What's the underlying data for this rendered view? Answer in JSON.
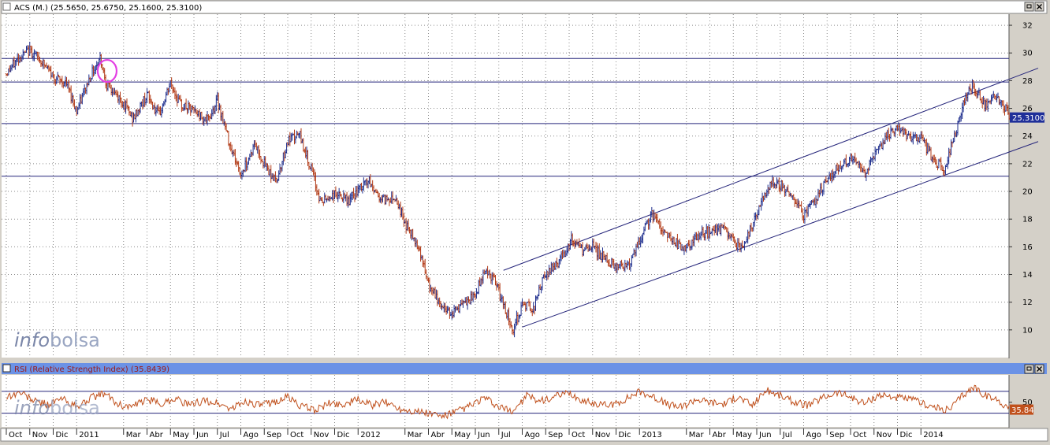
{
  "panels": {
    "price": {
      "header": "ACS (M.) (25.5650, 25.6750, 25.1600, 25.3100)",
      "last_value_label": "25.3100",
      "watermark": {
        "info": "info",
        "bolsa": "bolsa"
      }
    },
    "rsi": {
      "header": "RSI (Relative Strength Index) (35.8439)",
      "last_value_label": "35.84",
      "watermark": {
        "info": "info",
        "bolsa": "bolsa"
      }
    }
  },
  "window_buttons": [
    "restore-icon",
    "maximize-icon",
    "close-icon"
  ],
  "colors": {
    "background": "#ffffff",
    "header_bar": "#6b92e6",
    "bar_up": "#1c2c8c",
    "bar_down": "#b23a16",
    "trendline": "#24247a",
    "circle": "#e33fe3",
    "rsi_line": "#c0501c",
    "value_tag": "#1f2f99",
    "rsi_tag": "#c0501c",
    "grid": "#8a8a8a"
  },
  "chart_data": [
    {
      "type": "ohlc",
      "title": "ACS (M.)",
      "last": {
        "open": 25.565,
        "high": 25.675,
        "low": 25.16,
        "close": 25.31
      },
      "yticks": [
        10,
        12,
        14,
        16,
        18,
        20,
        22,
        24,
        26,
        28,
        30,
        32
      ],
      "ylim": [
        8,
        32.8
      ],
      "x_labels": [
        "Oct",
        "Nov",
        "Dic",
        "2011",
        "Mar",
        "Abr",
        "May",
        "Jun",
        "Jul",
        "Ago",
        "Sep",
        "Oct",
        "Nov",
        "Dic",
        "2012",
        "Mar",
        "Abr",
        "May",
        "Jun",
        "Jul",
        "Ago",
        "Sep",
        "Oct",
        "Nov",
        "Dic",
        "2013",
        "Mar",
        "Abr",
        "May",
        "Jun",
        "Jul",
        "Ago",
        "Sep",
        "Oct",
        "Nov",
        "Dic",
        "2014"
      ],
      "x_label_months": [
        0,
        1,
        2,
        3,
        5,
        6,
        7,
        8,
        9,
        10,
        11,
        12,
        13,
        14,
        15,
        17,
        18,
        19,
        20,
        21,
        22,
        23,
        24,
        25,
        26,
        27,
        29,
        30,
        31,
        32,
        33,
        34,
        35,
        36,
        37,
        38,
        39
      ],
      "series_path": [
        [
          0,
          28.5
        ],
        [
          0.5,
          29.6
        ],
        [
          1,
          30.2
        ],
        [
          1.5,
          29.4
        ],
        [
          2,
          28.3
        ],
        [
          2.6,
          27.7
        ],
        [
          3,
          25.8
        ],
        [
          3.6,
          28.4
        ],
        [
          4,
          29.7
        ],
        [
          4.3,
          27.6
        ],
        [
          5,
          26.4
        ],
        [
          5.4,
          25.2
        ],
        [
          6,
          27.0
        ],
        [
          6.5,
          25.4
        ],
        [
          7,
          27.8
        ],
        [
          7.4,
          26.3
        ],
        [
          8,
          25.8
        ],
        [
          8.6,
          25.1
        ],
        [
          9,
          26.6
        ],
        [
          9.5,
          23.6
        ],
        [
          10,
          21.2
        ],
        [
          10.6,
          23.4
        ],
        [
          11,
          22.0
        ],
        [
          11.5,
          20.7
        ],
        [
          12,
          23.6
        ],
        [
          12.5,
          24.1
        ],
        [
          13,
          21.6
        ],
        [
          13.4,
          19.2
        ],
        [
          14,
          19.8
        ],
        [
          14.6,
          19.3
        ],
        [
          15,
          20.0
        ],
        [
          15.4,
          20.8
        ],
        [
          16,
          19.4
        ],
        [
          16.6,
          19.6
        ],
        [
          17,
          17.7
        ],
        [
          17.6,
          16.0
        ],
        [
          18,
          13.2
        ],
        [
          18.6,
          11.6
        ],
        [
          19,
          11.3
        ],
        [
          19.6,
          11.9
        ],
        [
          20,
          12.5
        ],
        [
          20.4,
          14.4
        ],
        [
          20.8,
          13.6
        ],
        [
          21.3,
          11.4
        ],
        [
          21.6,
          10.0
        ],
        [
          22,
          11.8
        ],
        [
          22.5,
          11.6
        ],
        [
          22.8,
          13.3
        ],
        [
          23.3,
          14.6
        ],
        [
          23.6,
          15.0
        ],
        [
          24.1,
          16.5
        ],
        [
          24.6,
          15.7
        ],
        [
          25,
          16.0
        ],
        [
          25.6,
          15.0
        ],
        [
          26,
          14.6
        ],
        [
          26.6,
          14.8
        ],
        [
          27,
          16.3
        ],
        [
          27.5,
          18.4
        ],
        [
          28,
          17.2
        ],
        [
          28.6,
          16.2
        ],
        [
          29,
          15.8
        ],
        [
          29.6,
          16.9
        ],
        [
          30,
          17.1
        ],
        [
          30.6,
          17.3
        ],
        [
          31,
          16.4
        ],
        [
          31.4,
          15.9
        ],
        [
          32,
          18.4
        ],
        [
          32.6,
          20.7
        ],
        [
          33,
          20.5
        ],
        [
          33.6,
          19.5
        ],
        [
          34,
          18.3
        ],
        [
          34.6,
          19.6
        ],
        [
          35,
          21.0
        ],
        [
          35.6,
          21.9
        ],
        [
          36,
          22.4
        ],
        [
          36.6,
          21.2
        ],
        [
          37,
          22.7
        ],
        [
          37.6,
          24.0
        ],
        [
          38,
          24.5
        ],
        [
          38.6,
          23.7
        ],
        [
          39,
          23.8
        ],
        [
          39.6,
          22.1
        ],
        [
          40,
          21.7
        ],
        [
          40.4,
          23.8
        ],
        [
          40.8,
          26.2
        ],
        [
          41.2,
          27.7
        ],
        [
          41.7,
          26.2
        ],
        [
          42.1,
          26.8
        ],
        [
          42.5,
          26.3
        ],
        [
          42.8,
          25.3
        ]
      ],
      "horizontal_levels": [
        29.6,
        27.9,
        24.9,
        21.1
      ],
      "channel": {
        "upper": [
          [
            21.2,
            14.3
          ],
          [
            44.0,
            28.9
          ]
        ],
        "lower": [
          [
            22.0,
            10.2
          ],
          [
            44.0,
            23.6
          ]
        ]
      },
      "circle_marker": {
        "x_month": 4.3,
        "y": 28.7
      }
    },
    {
      "type": "line",
      "title": "RSI (Relative Strength Index)",
      "last_value": 35.8439,
      "yticks": [
        50
      ],
      "ylim": [
        5,
        100
      ],
      "levels": [
        70,
        30
      ],
      "series_path": [
        [
          0,
          60
        ],
        [
          0.6,
          68
        ],
        [
          1.2,
          52
        ],
        [
          1.8,
          46
        ],
        [
          2.4,
          57
        ],
        [
          3.0,
          40
        ],
        [
          3.6,
          58
        ],
        [
          4.2,
          66
        ],
        [
          4.8,
          45
        ],
        [
          5.4,
          42
        ],
        [
          6,
          55
        ],
        [
          6.6,
          47
        ],
        [
          7.2,
          58
        ],
        [
          7.8,
          44
        ],
        [
          8.4,
          53
        ],
        [
          9,
          48
        ],
        [
          9.6,
          38
        ],
        [
          10.2,
          52
        ],
        [
          10.8,
          44
        ],
        [
          11.4,
          50
        ],
        [
          12,
          60
        ],
        [
          12.6,
          42
        ],
        [
          13.2,
          36
        ],
        [
          13.8,
          48
        ],
        [
          14.4,
          46
        ],
        [
          15,
          55
        ],
        [
          15.6,
          44
        ],
        [
          16.2,
          50
        ],
        [
          16.8,
          38
        ],
        [
          17.4,
          34
        ],
        [
          18,
          30
        ],
        [
          18.6,
          24
        ],
        [
          19.2,
          33
        ],
        [
          19.8,
          44
        ],
        [
          20.4,
          58
        ],
        [
          21,
          40
        ],
        [
          21.6,
          34
        ],
        [
          22.2,
          62
        ],
        [
          22.8,
          52
        ],
        [
          23.4,
          60
        ],
        [
          24,
          66
        ],
        [
          24.6,
          52
        ],
        [
          25.2,
          47
        ],
        [
          25.8,
          44
        ],
        [
          26.4,
          56
        ],
        [
          27,
          70
        ],
        [
          27.6,
          60
        ],
        [
          28.2,
          46
        ],
        [
          28.8,
          41
        ],
        [
          29.4,
          56
        ],
        [
          30,
          50
        ],
        [
          30.6,
          47
        ],
        [
          31.2,
          60
        ],
        [
          31.8,
          44
        ],
        [
          32.4,
          72
        ],
        [
          33,
          62
        ],
        [
          33.6,
          50
        ],
        [
          34.2,
          44
        ],
        [
          34.8,
          58
        ],
        [
          35.4,
          68
        ],
        [
          36,
          60
        ],
        [
          36.6,
          48
        ],
        [
          37.2,
          64
        ],
        [
          37.8,
          60
        ],
        [
          38.4,
          56
        ],
        [
          39,
          50
        ],
        [
          39.6,
          40
        ],
        [
          40.2,
          36
        ],
        [
          40.8,
          64
        ],
        [
          41.3,
          78
        ],
        [
          41.8,
          60
        ],
        [
          42.3,
          54
        ],
        [
          42.8,
          36
        ]
      ]
    }
  ]
}
